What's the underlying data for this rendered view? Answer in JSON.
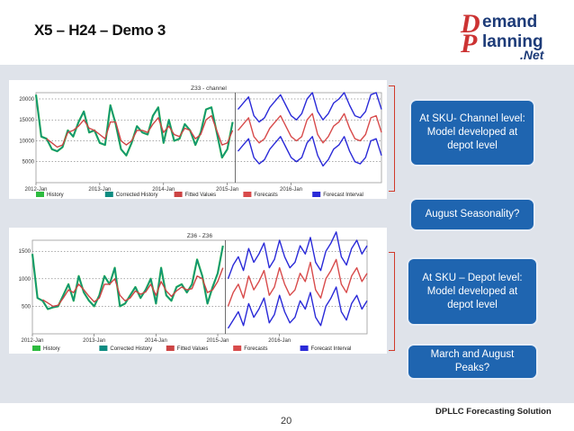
{
  "slide": {
    "title": "X5 – H24 – Demo 3",
    "page_number": "20",
    "footer": "DPLLC Forecasting Solution"
  },
  "logo": {
    "line1": "emand",
    "line2": "lanning",
    "line3": ".Net",
    "initial1": "D",
    "initial2": "P"
  },
  "colors": {
    "history": "#2dbb3f",
    "corrected_history": "#0e8c82",
    "fitted_values": "#cc4444",
    "forecasts": "#d84b4b",
    "forecast_interval": "#2a2ad8",
    "callout": "#1f65b0",
    "bracket": "#d13a2a",
    "background": "#dfe3ea"
  },
  "legend": [
    "History",
    "Corrected History",
    "Fitted Values",
    "Forecasts",
    "Forecast Interval"
  ],
  "callouts": {
    "sku_channel": "At SKU- Channel level: Model developed at depot level",
    "august": "August Seasonality?",
    "sku_depot": "At SKU – Depot level: Model developed at depot level",
    "march_august": "March and August Peaks?"
  },
  "chart_data": [
    {
      "type": "line",
      "title": "Z33 - channel",
      "x_tick_labels": [
        "2012-Jan",
        "2013-Jan",
        "2014-Jan",
        "2015-Jan",
        "2016-Jan"
      ],
      "y_ticks": [
        5000,
        10000,
        15000,
        20000
      ],
      "ylim": [
        0,
        21500
      ],
      "grid": true,
      "legend_position": "bottom",
      "history_months": 38,
      "series": [
        {
          "name": "History",
          "start": 0,
          "values": [
            21000,
            11000,
            10500,
            8000,
            7500,
            8500,
            12500,
            11000,
            14500,
            17000,
            12000,
            12500,
            9500,
            9000,
            18500,
            14000,
            8000,
            6500,
            9500,
            13500,
            12000,
            11500,
            16000,
            18000,
            9500,
            15000,
            10000,
            10500,
            14000,
            12500,
            9000,
            12000,
            17500,
            18000,
            12000,
            6000,
            8000,
            14500
          ]
        },
        {
          "name": "Corrected History",
          "start": 0,
          "values": [
            21000,
            11000,
            10500,
            8000,
            7500,
            8500,
            12500,
            11000,
            14500,
            17000,
            12000,
            12500,
            9500,
            9000,
            18500,
            14000,
            8000,
            6500,
            9500,
            13500,
            12000,
            11500,
            16000,
            18000,
            9500,
            15000,
            10000,
            10500,
            14000,
            12500,
            9000,
            12000,
            17500,
            18000,
            12000,
            6000,
            8000,
            14500
          ]
        },
        {
          "name": "Fitted Values",
          "start": 0,
          "values": [
            null,
            null,
            10500,
            9500,
            8500,
            9000,
            12000,
            12500,
            13500,
            15000,
            13000,
            12500,
            11500,
            10500,
            14500,
            14500,
            10000,
            9000,
            10000,
            12500,
            12500,
            12000,
            14000,
            15500,
            12000,
            13500,
            11500,
            11000,
            13000,
            12500,
            10500,
            11500,
            15000,
            16000,
            12500,
            9000,
            9500,
            12500
          ]
        },
        {
          "name": "Forecasts",
          "start": 38,
          "values": [
            12500,
            14000,
            15500,
            11000,
            9500,
            10500,
            13000,
            14500,
            16000,
            13500,
            11000,
            10000,
            11000,
            15000,
            16500,
            11500,
            9500,
            11000,
            13500,
            14500,
            16500,
            13000,
            10500,
            10000,
            11500,
            15500,
            16000,
            12000
          ]
        },
        {
          "name": "Forecast Interval",
          "start": 38,
          "values": [
            17500,
            19000,
            20500,
            16000,
            14500,
            15500,
            18000,
            19500,
            21000,
            18500,
            16000,
            15000,
            16500,
            20000,
            21500,
            17000,
            15000,
            16500,
            19000,
            20000,
            21500,
            18500,
            16000,
            15500,
            17000,
            21000,
            21500,
            17500
          ]
        },
        {
          "name": "Forecast Interval",
          "start": 38,
          "values": [
            7500,
            9000,
            10500,
            6000,
            4500,
            5500,
            8000,
            9500,
            11000,
            8500,
            6000,
            5000,
            6000,
            9500,
            11000,
            6500,
            4000,
            5500,
            8000,
            9000,
            11000,
            7500,
            5000,
            4500,
            6000,
            10000,
            10500,
            6500
          ]
        }
      ]
    },
    {
      "type": "line",
      "title": "Z36 - Z36",
      "x_tick_labels": [
        "2012-Jan",
        "2013-Jan",
        "2014-Jan",
        "2015-Jan",
        "2016-Jan"
      ],
      "y_ticks": [
        500,
        1000,
        1500
      ],
      "ylim": [
        0,
        1700
      ],
      "grid": true,
      "legend_position": "bottom",
      "history_months": 38,
      "series": [
        {
          "name": "History",
          "start": 0,
          "values": [
            1450,
            650,
            600,
            450,
            480,
            500,
            700,
            900,
            600,
            1050,
            750,
            600,
            500,
            700,
            1050,
            900,
            1200,
            500,
            550,
            700,
            850,
            650,
            800,
            1000,
            550,
            1200,
            700,
            600,
            850,
            900,
            750,
            900,
            1350,
            1050,
            550,
            850,
            1100,
            1600
          ]
        },
        {
          "name": "Corrected History",
          "start": 0,
          "values": [
            1450,
            650,
            600,
            450,
            480,
            500,
            700,
            900,
            600,
            1050,
            750,
            600,
            500,
            700,
            1050,
            900,
            1200,
            500,
            550,
            700,
            850,
            650,
            800,
            1000,
            550,
            1200,
            700,
            600,
            850,
            900,
            750,
            900,
            1350,
            1050,
            550,
            850,
            1100,
            1600
          ]
        },
        {
          "name": "Fitted Values",
          "start": 0,
          "values": [
            null,
            null,
            620,
            560,
            500,
            520,
            650,
            800,
            750,
            900,
            800,
            680,
            580,
            650,
            900,
            900,
            1000,
            700,
            600,
            650,
            780,
            720,
            760,
            900,
            700,
            950,
            780,
            680,
            780,
            850,
            800,
            820,
            1050,
            1000,
            750,
            800,
            950,
            1200
          ]
        },
        {
          "name": "Forecasts",
          "start": 38,
          "values": [
            500,
            750,
            900,
            650,
            1050,
            800,
            950,
            1150,
            700,
            850,
            1200,
            900,
            700,
            800,
            1100,
            950,
            1300,
            800,
            650,
            1000,
            1150,
            1350,
            900,
            750,
            1050,
            1200,
            950,
            1100
          ]
        },
        {
          "name": "Forecast Interval",
          "start": 38,
          "values": [
            1000,
            1250,
            1400,
            1150,
            1550,
            1300,
            1450,
            1650,
            1200,
            1350,
            1700,
            1400,
            1200,
            1300,
            1600,
            1450,
            1750,
            1300,
            1150,
            1500,
            1650,
            1850,
            1400,
            1250,
            1550,
            1700,
            1450,
            1600
          ]
        },
        {
          "name": "Forecast Interval",
          "start": 38,
          "values": [
            100,
            250,
            400,
            150,
            550,
            300,
            450,
            650,
            200,
            350,
            700,
            400,
            200,
            300,
            600,
            450,
            750,
            300,
            150,
            500,
            650,
            850,
            400,
            250,
            550,
            700,
            450,
            600
          ]
        }
      ]
    }
  ]
}
